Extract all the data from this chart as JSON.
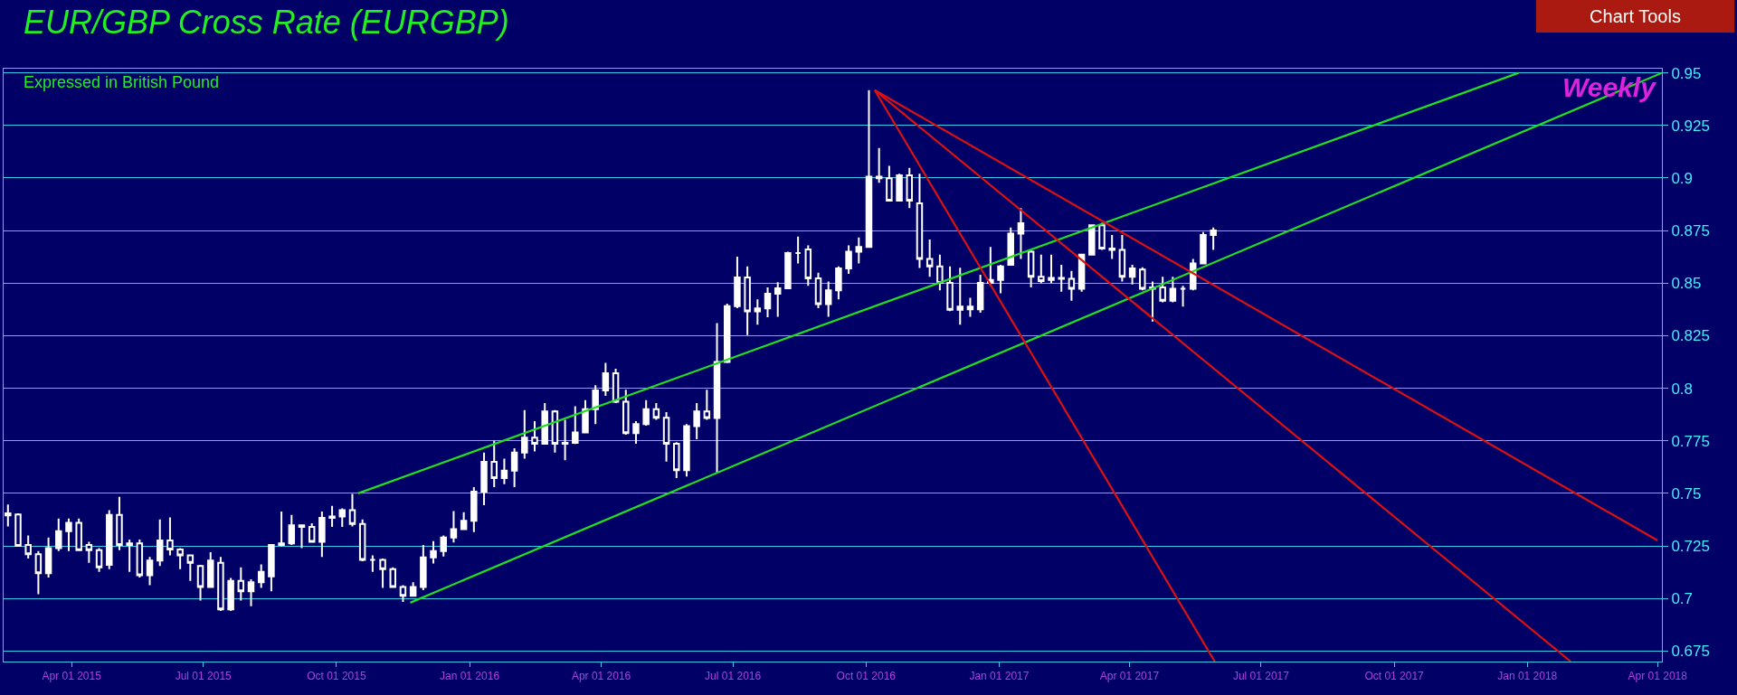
{
  "chart_data": {
    "type": "candlestick",
    "title": "EUR/GBP Cross Rate (EURGBP)",
    "subtitle": "Expressed in British Pound",
    "annotations": [
      "Weekly",
      "Chart Tools"
    ],
    "x": [
      "2015-02-16",
      "2015-02-23",
      "2015-03-02",
      "2015-03-09",
      "2015-03-16",
      "2015-03-23",
      "2015-03-30",
      "2015-04-06",
      "2015-04-13",
      "2015-04-20",
      "2015-04-27",
      "2015-05-04",
      "2015-05-11",
      "2015-05-18",
      "2015-05-25",
      "2015-06-01",
      "2015-06-08",
      "2015-06-15",
      "2015-06-22",
      "2015-06-29",
      "2015-07-06",
      "2015-07-13",
      "2015-07-20",
      "2015-07-27",
      "2015-08-03",
      "2015-08-10",
      "2015-08-17",
      "2015-08-24",
      "2015-08-31",
      "2015-09-07",
      "2015-09-14",
      "2015-09-21",
      "2015-09-28",
      "2015-10-05",
      "2015-10-12",
      "2015-10-19",
      "2015-10-26",
      "2015-11-02",
      "2015-11-09",
      "2015-11-16",
      "2015-11-23",
      "2015-11-30",
      "2015-12-07",
      "2015-12-14",
      "2015-12-21",
      "2015-12-28",
      "2016-01-04",
      "2016-01-11",
      "2016-01-18",
      "2016-01-25",
      "2016-02-01",
      "2016-02-08",
      "2016-02-15",
      "2016-02-22",
      "2016-02-29",
      "2016-03-07",
      "2016-03-14",
      "2016-03-21",
      "2016-03-28",
      "2016-04-04",
      "2016-04-11",
      "2016-04-18",
      "2016-04-25",
      "2016-05-02",
      "2016-05-09",
      "2016-05-16",
      "2016-05-23",
      "2016-05-30",
      "2016-06-06",
      "2016-06-13",
      "2016-06-20",
      "2016-06-27",
      "2016-07-04",
      "2016-07-11",
      "2016-07-18",
      "2016-07-25",
      "2016-08-01",
      "2016-08-08",
      "2016-08-15",
      "2016-08-22",
      "2016-08-29",
      "2016-09-05",
      "2016-09-12",
      "2016-09-19",
      "2016-09-26",
      "2016-10-03",
      "2016-10-10",
      "2016-10-17",
      "2016-10-24",
      "2016-10-31",
      "2016-11-07",
      "2016-11-14",
      "2016-11-21",
      "2016-11-28",
      "2016-12-05",
      "2016-12-12",
      "2016-12-19",
      "2016-12-26",
      "2017-01-02",
      "2017-01-09",
      "2017-01-16",
      "2017-01-23",
      "2017-01-30",
      "2017-02-06",
      "2017-02-13",
      "2017-02-20",
      "2017-02-27",
      "2017-03-06",
      "2017-03-13",
      "2017-03-20",
      "2017-03-27",
      "2017-04-03",
      "2017-04-10",
      "2017-04-17",
      "2017-04-24",
      "2017-05-01",
      "2017-05-08",
      "2017-05-15",
      "2017-05-22",
      "2017-05-29"
    ],
    "ohlc": [
      [
        0.7405,
        0.7447,
        0.7343,
        0.7395
      ],
      [
        0.74,
        0.7405,
        0.7248,
        0.725
      ],
      [
        0.7255,
        0.73,
        0.719,
        0.721
      ],
      [
        0.721,
        0.7226,
        0.702,
        0.712
      ],
      [
        0.712,
        0.729,
        0.71,
        0.724
      ],
      [
        0.724,
        0.738,
        0.7226,
        0.732
      ],
      [
        0.732,
        0.738,
        0.7226,
        0.736
      ],
      [
        0.736,
        0.738,
        0.7226,
        0.723
      ],
      [
        0.7255,
        0.727,
        0.717,
        0.723
      ],
      [
        0.723,
        0.724,
        0.7127,
        0.7148
      ],
      [
        0.716,
        0.742,
        0.714,
        0.7397
      ],
      [
        0.7397,
        0.7483,
        0.723,
        0.7255
      ],
      [
        0.7255,
        0.728,
        0.7127,
        0.7262
      ],
      [
        0.7262,
        0.728,
        0.71,
        0.711
      ],
      [
        0.711,
        0.7198,
        0.7063,
        0.718
      ],
      [
        0.718,
        0.7376,
        0.7155,
        0.7276
      ],
      [
        0.7276,
        0.7386,
        0.7205,
        0.7233
      ],
      [
        0.7233,
        0.724,
        0.714,
        0.7205
      ],
      [
        0.7205,
        0.7205,
        0.7084,
        0.717
      ],
      [
        0.7155,
        0.716,
        0.699,
        0.7055
      ],
      [
        0.7055,
        0.722,
        0.7055,
        0.718
      ],
      [
        0.717,
        0.7198,
        0.6941,
        0.6948
      ],
      [
        0.6948,
        0.7098,
        0.6941,
        0.7084
      ],
      [
        0.7084,
        0.7148,
        0.699,
        0.7034
      ],
      [
        0.7034,
        0.7091,
        0.6963,
        0.7077
      ],
      [
        0.7077,
        0.7162,
        0.705,
        0.7127
      ],
      [
        0.7105,
        0.7255,
        0.7034,
        0.7255
      ],
      [
        0.7255,
        0.7414,
        0.7248,
        0.7262
      ],
      [
        0.7262,
        0.7397,
        0.7255,
        0.7348
      ],
      [
        0.7348,
        0.7348,
        0.724,
        0.734
      ],
      [
        0.734,
        0.7358,
        0.727,
        0.727
      ],
      [
        0.727,
        0.7414,
        0.7198,
        0.7383
      ],
      [
        0.7383,
        0.744,
        0.734,
        0.739
      ],
      [
        0.739,
        0.7429,
        0.734,
        0.742
      ],
      [
        0.742,
        0.7497,
        0.7343,
        0.7355
      ],
      [
        0.7355,
        0.7376,
        0.7177,
        0.7184
      ],
      [
        0.7184,
        0.7205,
        0.7127,
        0.7184
      ],
      [
        0.7184,
        0.719,
        0.705,
        0.714
      ],
      [
        0.714,
        0.7148,
        0.705,
        0.7055
      ],
      [
        0.7055,
        0.7063,
        0.6984,
        0.7013
      ],
      [
        0.7013,
        0.7077,
        0.7013,
        0.7055
      ],
      [
        0.7055,
        0.7255,
        0.704,
        0.7195
      ],
      [
        0.7195,
        0.7273,
        0.7166,
        0.7225
      ],
      [
        0.7225,
        0.73,
        0.72,
        0.729
      ],
      [
        0.729,
        0.7416,
        0.7266,
        0.733
      ],
      [
        0.733,
        0.741,
        0.733,
        0.737
      ],
      [
        0.737,
        0.753,
        0.7316,
        0.7508
      ],
      [
        0.7508,
        0.7694,
        0.7444,
        0.765
      ],
      [
        0.765,
        0.775,
        0.753,
        0.7573
      ],
      [
        0.7573,
        0.7665,
        0.7544,
        0.7608
      ],
      [
        0.7608,
        0.7715,
        0.753,
        0.7694
      ],
      [
        0.7694,
        0.7896,
        0.7665,
        0.7765
      ],
      [
        0.7765,
        0.7843,
        0.77,
        0.7736
      ],
      [
        0.7736,
        0.7929,
        0.7736,
        0.789
      ],
      [
        0.789,
        0.7896,
        0.7694,
        0.7736
      ],
      [
        0.7736,
        0.785,
        0.7658,
        0.774
      ],
      [
        0.774,
        0.7914,
        0.7735,
        0.779
      ],
      [
        0.779,
        0.7943,
        0.7786,
        0.79
      ],
      [
        0.79,
        0.8014,
        0.783,
        0.799
      ],
      [
        0.799,
        0.8121,
        0.7964,
        0.8071
      ],
      [
        0.8071,
        0.8093,
        0.7929,
        0.7936
      ],
      [
        0.7936,
        0.7993,
        0.7779,
        0.7786
      ],
      [
        0.7786,
        0.7843,
        0.7736,
        0.783
      ],
      [
        0.783,
        0.7943,
        0.7822,
        0.79
      ],
      [
        0.79,
        0.7929,
        0.785,
        0.786
      ],
      [
        0.786,
        0.7886,
        0.7651,
        0.7736
      ],
      [
        0.7736,
        0.7743,
        0.7573,
        0.761
      ],
      [
        0.761,
        0.7829,
        0.758,
        0.782
      ],
      [
        0.782,
        0.7929,
        0.7758,
        0.789
      ],
      [
        0.789,
        0.7993,
        0.785,
        0.7858
      ],
      [
        0.7858,
        0.831,
        0.76,
        0.8125
      ],
      [
        0.8125,
        0.8402,
        0.812,
        0.839
      ],
      [
        0.839,
        0.8626,
        0.8381,
        0.8527
      ],
      [
        0.8527,
        0.858,
        0.8253,
        0.8366
      ],
      [
        0.8366,
        0.8423,
        0.8302,
        0.838
      ],
      [
        0.838,
        0.848,
        0.8338,
        0.845
      ],
      [
        0.845,
        0.8504,
        0.834,
        0.8475
      ],
      [
        0.8475,
        0.865,
        0.8473,
        0.8643
      ],
      [
        0.8643,
        0.8722,
        0.8594,
        0.8643
      ],
      [
        0.866,
        0.868,
        0.8487,
        0.8523
      ],
      [
        0.8523,
        0.855,
        0.8381,
        0.84
      ],
      [
        0.84,
        0.8508,
        0.834,
        0.8466
      ],
      [
        0.8466,
        0.858,
        0.8423,
        0.857
      ],
      [
        0.857,
        0.868,
        0.8544,
        0.865
      ],
      [
        0.865,
        0.8717,
        0.8594,
        0.8672
      ],
      [
        0.8672,
        0.9418,
        0.8672,
        0.9006
      ],
      [
        0.9006,
        0.9143,
        0.8977,
        0.8999
      ],
      [
        0.8999,
        0.9058,
        0.8888,
        0.8892
      ],
      [
        0.8892,
        0.902,
        0.8892,
        0.9013
      ],
      [
        0.9013,
        0.9048,
        0.8857,
        0.8892
      ],
      [
        0.888,
        0.902,
        0.8572,
        0.8615
      ],
      [
        0.8615,
        0.8707,
        0.853,
        0.858
      ],
      [
        0.858,
        0.8636,
        0.8466,
        0.8501
      ],
      [
        0.8501,
        0.858,
        0.8367,
        0.8373
      ],
      [
        0.8373,
        0.8573,
        0.8302,
        0.8388
      ],
      [
        0.8388,
        0.843,
        0.834,
        0.8375
      ],
      [
        0.8375,
        0.854,
        0.8359,
        0.8501
      ],
      [
        0.8501,
        0.8672,
        0.8487,
        0.8515
      ],
      [
        0.8515,
        0.8587,
        0.8452,
        0.858
      ],
      [
        0.8587,
        0.8764,
        0.8587,
        0.8736
      ],
      [
        0.8736,
        0.8857,
        0.8615,
        0.8785
      ],
      [
        0.865,
        0.8658,
        0.848,
        0.853
      ],
      [
        0.853,
        0.8636,
        0.85,
        0.851
      ],
      [
        0.8515,
        0.8636,
        0.85,
        0.8525
      ],
      [
        0.8525,
        0.8587,
        0.8459,
        0.852
      ],
      [
        0.852,
        0.8558,
        0.8416,
        0.8473
      ],
      [
        0.8473,
        0.8636,
        0.8459,
        0.8636
      ],
      [
        0.8636,
        0.8778,
        0.8636,
        0.8775
      ],
      [
        0.8775,
        0.8786,
        0.8658,
        0.8665
      ],
      [
        0.8665,
        0.8729,
        0.8615,
        0.8658
      ],
      [
        0.8658,
        0.8729,
        0.8508,
        0.853
      ],
      [
        0.853,
        0.8587,
        0.8494,
        0.857
      ],
      [
        0.8565,
        0.8575,
        0.8466,
        0.8473
      ],
      [
        0.8473,
        0.8508,
        0.8317,
        0.848
      ],
      [
        0.848,
        0.853,
        0.8409,
        0.8416
      ],
      [
        0.8416,
        0.853,
        0.8409,
        0.8473
      ],
      [
        0.8473,
        0.8487,
        0.8388,
        0.8473
      ],
      [
        0.8473,
        0.8615,
        0.8466,
        0.8594
      ],
      [
        0.8594,
        0.8743,
        0.8594,
        0.8729
      ],
      [
        0.8729,
        0.8764,
        0.8658,
        0.875
      ]
    ],
    "color": "#ffffff",
    "series": [
      {
        "type": "line",
        "color": "#22dd22",
        "x": [
          "2015-10-16",
          "2017-12-26"
        ],
        "values": [
          0.75,
          0.95
        ]
      },
      {
        "type": "line",
        "color": "#22dd22",
        "x": [
          "2015-11-21",
          "2018-04-04"
        ],
        "values": [
          0.698,
          0.95
        ]
      },
      {
        "type": "line",
        "color": "#dd1111",
        "x": [
          "2016-10-07",
          "2018-04-01"
        ],
        "values": [
          0.9418,
          0.7276
        ]
      },
      {
        "type": "line",
        "color": "#dd1111",
        "x": [
          "2016-10-07",
          "2018-01-31"
        ],
        "values": [
          0.9418,
          0.67
        ]
      },
      {
        "type": "line",
        "color": "#dd1111",
        "x": [
          "2016-10-07",
          "2017-05-30"
        ],
        "values": [
          0.9418,
          0.67
        ]
      }
    ],
    "xlim": [
      "2015-02-13",
      "2018-04-04"
    ],
    "xticks": [
      {
        "value": "2015-04-01",
        "label": "Apr 01 2015"
      },
      {
        "value": "2015-07-01",
        "label": "Jul 01 2015"
      },
      {
        "value": "2015-10-01",
        "label": "Oct 01 2015"
      },
      {
        "value": "2016-01-01",
        "label": "Jan 01 2016"
      },
      {
        "value": "2016-04-01",
        "label": "Apr 01 2016"
      },
      {
        "value": "2016-07-01",
        "label": "Jul 01 2016"
      },
      {
        "value": "2016-10-01",
        "label": "Oct 01 2016"
      },
      {
        "value": "2017-01-01",
        "label": "Jan 01 2017"
      },
      {
        "value": "2017-04-01",
        "label": "Apr 01 2017"
      },
      {
        "value": "2017-07-01",
        "label": "Jul 01 2017"
      },
      {
        "value": "2017-10-01",
        "label": "Oct 01 2017"
      },
      {
        "value": "2018-01-01",
        "label": "Jan 01 2018"
      },
      {
        "value": "2018-04-01",
        "label": "Apr 01 2018"
      }
    ],
    "ylim": [
      0.67,
      0.952
    ],
    "yticks": [
      0.675,
      0.7,
      0.725,
      0.75,
      0.775,
      0.8,
      0.825,
      0.85,
      0.875,
      0.9,
      0.925,
      0.95
    ],
    "grid": "y",
    "line_style": "solid",
    "marker": "none"
  }
}
